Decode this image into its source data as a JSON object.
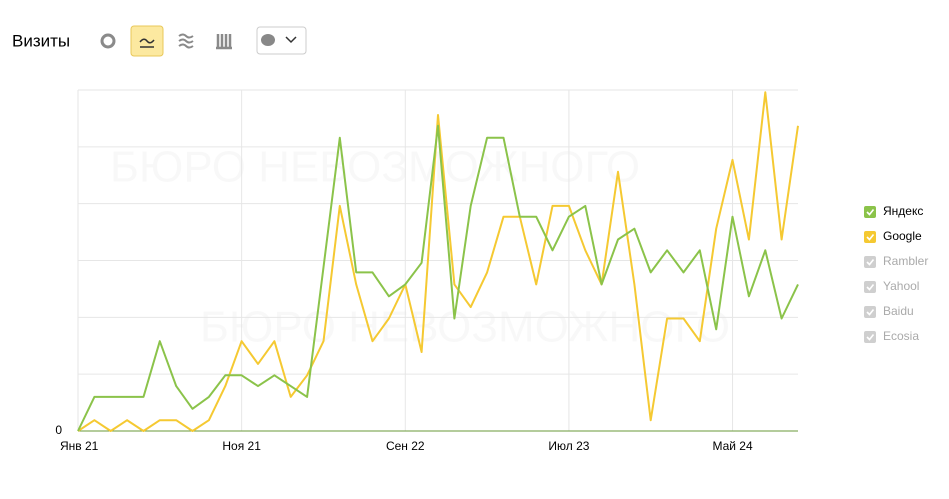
{
  "chart_data": {
    "type": "line",
    "title": "Визиты",
    "watermark": "БЮРО НЕВОЗМОЖНОГО",
    "categories": [
      "Янв 21",
      null,
      null,
      null,
      null,
      null,
      null,
      null,
      null,
      null,
      "Ноя 21",
      null,
      null,
      null,
      null,
      null,
      null,
      null,
      null,
      null,
      "Сен 22",
      null,
      null,
      null,
      null,
      null,
      null,
      null,
      null,
      null,
      "Июл 23",
      null,
      null,
      null,
      null,
      null,
      null,
      null,
      null,
      null,
      "Май 24",
      null,
      null,
      null,
      null
    ],
    "series": [
      {
        "name": "Яндекс",
        "color": "#8bc34a",
        "values": [
          0,
          0.6,
          0.6,
          0.6,
          0.6,
          1.58,
          0.79,
          0.39,
          0.6,
          0.98,
          0.98,
          0.79,
          0.98,
          0.79,
          0.6,
          2.88,
          5.16,
          2.79,
          2.79,
          2.37,
          2.58,
          2.96,
          5.37,
          1.98,
          3.96,
          5.16,
          5.16,
          3.77,
          3.77,
          3.18,
          3.77,
          3.96,
          2.58,
          3.37,
          3.56,
          2.79,
          3.18,
          2.79,
          3.18,
          1.79,
          3.77,
          2.37,
          3.18,
          1.98,
          2.58
        ]
      },
      {
        "name": "Google",
        "color": "#f5c932",
        "values": [
          0,
          0.19,
          0,
          0.19,
          0,
          0.19,
          0.19,
          0,
          0.19,
          0.79,
          1.58,
          1.18,
          1.58,
          0.6,
          0.98,
          1.58,
          3.96,
          2.58,
          1.58,
          1.98,
          2.58,
          1.39,
          5.56,
          2.58,
          2.18,
          2.79,
          3.77,
          3.77,
          2.58,
          3.96,
          3.96,
          3.18,
          2.58,
          4.56,
          2.58,
          0.19,
          1.98,
          1.98,
          1.58,
          3.56,
          4.77,
          3.37,
          5.96,
          3.37,
          5.37
        ]
      }
    ],
    "legend_disabled": [
      "Rambler",
      "Yahool",
      "Baidu",
      "Ecosia"
    ],
    "ylim": [
      0,
      6
    ],
    "yticks": [
      0
    ],
    "ygrid": [
      1,
      2,
      3,
      4,
      5,
      6
    ],
    "grid": true,
    "legend": "right"
  }
}
